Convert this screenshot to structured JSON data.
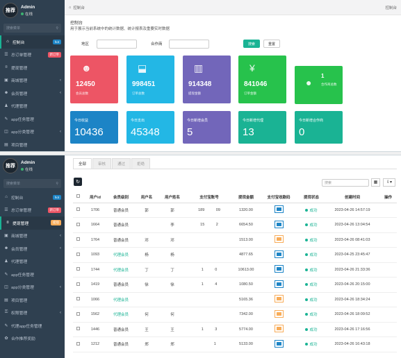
{
  "user": {
    "avatar": "推荐",
    "name": "Admin",
    "status": "在线"
  },
  "sidebar": {
    "search_placeholder": "搜索菜单",
    "menu_top": [
      {
        "label": "控制台",
        "icon": "home-icon",
        "badge": "hot",
        "badge_color": "#1c84c6",
        "active": true
      },
      {
        "label": "总订单管理",
        "icon": "list-icon",
        "badge": "新订单",
        "badge_color": "#ed5565"
      },
      {
        "label": "提现管理",
        "icon": "wallet-icon"
      },
      {
        "label": "商城管理",
        "icon": "shop-icon",
        "chevron": true
      },
      {
        "label": "会员管理",
        "icon": "users-icon",
        "chevron": true
      },
      {
        "label": "代理管理",
        "icon": "agent-icon"
      },
      {
        "label": "app任务管理",
        "icon": "task-icon"
      },
      {
        "label": "app分类管理",
        "icon": "category-icon",
        "chevron": true
      },
      {
        "label": "项目管理",
        "icon": "project-icon"
      }
    ],
    "menu_bottom": [
      {
        "label": "控制台",
        "icon": "home-icon",
        "badge": "hot",
        "badge_color": "#1c84c6"
      },
      {
        "label": "总订单管理",
        "icon": "list-icon",
        "badge": "新订单",
        "badge_color": "#ed5565"
      },
      {
        "label": "提现管理",
        "icon": "wallet-icon",
        "badge": "提现",
        "badge_color": "#f8ac59",
        "active": true
      },
      {
        "label": "商城管理",
        "icon": "shop-icon",
        "chevron": true
      },
      {
        "label": "会员管理",
        "icon": "users-icon",
        "chevron": true
      },
      {
        "label": "代理管理",
        "icon": "agent-icon"
      },
      {
        "label": "app任务管理",
        "icon": "task-icon"
      },
      {
        "label": "app分类管理",
        "icon": "category-icon",
        "chevron": true
      },
      {
        "label": "项目管理",
        "icon": "project-icon"
      },
      {
        "label": "权限管理",
        "icon": "lock-icon",
        "chevron": true
      },
      {
        "label": "代理app任务管理",
        "icon": "task-icon"
      },
      {
        "label": "合作推荐奖励",
        "icon": "gift-icon"
      }
    ]
  },
  "header": {
    "breadcrumb": "控制台",
    "right": "控制台"
  },
  "page": {
    "title": "控制台",
    "desc": "用于展示当前系统中的统计数据、统计报表及重要实时数据"
  },
  "filter": {
    "region_label": "地区",
    "agent_label": "合作商",
    "search_btn": "搜索",
    "reset_btn": "重置"
  },
  "cards_top": [
    {
      "value": "12450",
      "label": "会员总数",
      "color": "#ed5565",
      "icon": "users-icon"
    },
    {
      "value": "998451",
      "label": "订单总数",
      "color": "#23b7e5",
      "icon": "bag-icon"
    },
    {
      "value": "914348",
      "label": "提现金额",
      "color": "#7266ba",
      "icon": "book-icon"
    },
    {
      "value": "841046",
      "label": "订单金额",
      "color": "#27c24c",
      "icon": "yen-icon"
    },
    {
      "value": "1",
      "label": "合作商总数",
      "color": "#27c24c",
      "icon": "person-icon"
    }
  ],
  "cards_bottom": [
    {
      "title": "今日收益",
      "value": "10436",
      "color": "#1c84c6"
    },
    {
      "title": "今日支出",
      "value": "45348",
      "color": "#23b7e5"
    },
    {
      "title": "今日新增会员",
      "value": "5",
      "color": "#7266ba"
    },
    {
      "title": "今日新增代理",
      "value": "13",
      "color": "#1ab394"
    },
    {
      "title": "今日新增合作商",
      "value": "0",
      "color": "#1ab394"
    }
  ],
  "tabs": [
    "全部",
    "审核",
    "通过",
    "拒绝"
  ],
  "table": {
    "search_placeholder": "搜索",
    "headers": [
      "",
      "用户id",
      "会员级别",
      "用户名",
      "用户姓名",
      "支付宝账号",
      "提现金额",
      "支付宝收款码",
      "提现状态",
      "创建时间",
      "操作"
    ],
    "rows": [
      {
        "id": "1706",
        "level": "普通会员",
        "user": "郭",
        "name": "郭",
        "acct": "189",
        "acct2": "09",
        "amount": "1320.00",
        "qr": "blue",
        "status": "成功",
        "time": "2023-04-26 14:57:19"
      },
      {
        "id": "1664",
        "level": "普通会员",
        "user": "",
        "name": "李",
        "acct": "15",
        "acct2": "2",
        "amount": "6654.50",
        "qr": "blue",
        "status": "成功",
        "time": "2023-04-26 13:04:54"
      },
      {
        "id": "1764",
        "level": "普通会员",
        "user": "邓",
        "name": "邓",
        "acct": "",
        "acct2": "",
        "amount": "1513.00",
        "qr": "orange",
        "status": "成功",
        "time": "2023-04-26 08:41:03"
      },
      {
        "id": "1093",
        "level": "代理会员",
        "user": "杨",
        "name": "杨",
        "acct": "",
        "acct2": "",
        "amount": "4877.65",
        "qr": "blue",
        "status": "成功",
        "time": "2023-04-25 23:45:47"
      },
      {
        "id": "1744",
        "level": "代理会员",
        "user": "丁",
        "name": "丁",
        "acct": "1",
        "acct2": "0",
        "amount": "10613.00",
        "qr": "blue",
        "status": "成功",
        "time": "2023-04-26 21:33:36"
      },
      {
        "id": "1419",
        "level": "普通会员",
        "user": "徐",
        "name": "徐",
        "acct": "1",
        "acct2": "4",
        "amount": "1080.50",
        "qr": "blue",
        "status": "成功",
        "time": "2023-04-26 20:15:00"
      },
      {
        "id": "1066",
        "level": "代理会员",
        "user": "",
        "name": "",
        "acct": "",
        "acct2": "",
        "amount": "5165.36",
        "qr": "orange",
        "status": "成功",
        "time": "2023-04-26 18:34:24"
      },
      {
        "id": "1562",
        "level": "代理会员",
        "user": "何",
        "name": "何",
        "acct": "",
        "acct2": "",
        "amount": "7342.00",
        "qr": "orange",
        "status": "成功",
        "time": "2023-04-26 18:09:52"
      },
      {
        "id": "1446",
        "level": "普通会员",
        "user": "王",
        "name": "王",
        "acct": "1",
        "acct2": "3",
        "amount": "5774.00",
        "qr": "orange",
        "status": "成功",
        "time": "2023-04-26 17:16:56"
      },
      {
        "id": "1212",
        "level": "普通会员",
        "user": "郑",
        "name": "郑",
        "acct": "",
        "acct2": "1",
        "amount": "5133.00",
        "qr": "blue",
        "status": "成功",
        "time": "2023-04-26 16:43:18"
      }
    ]
  }
}
